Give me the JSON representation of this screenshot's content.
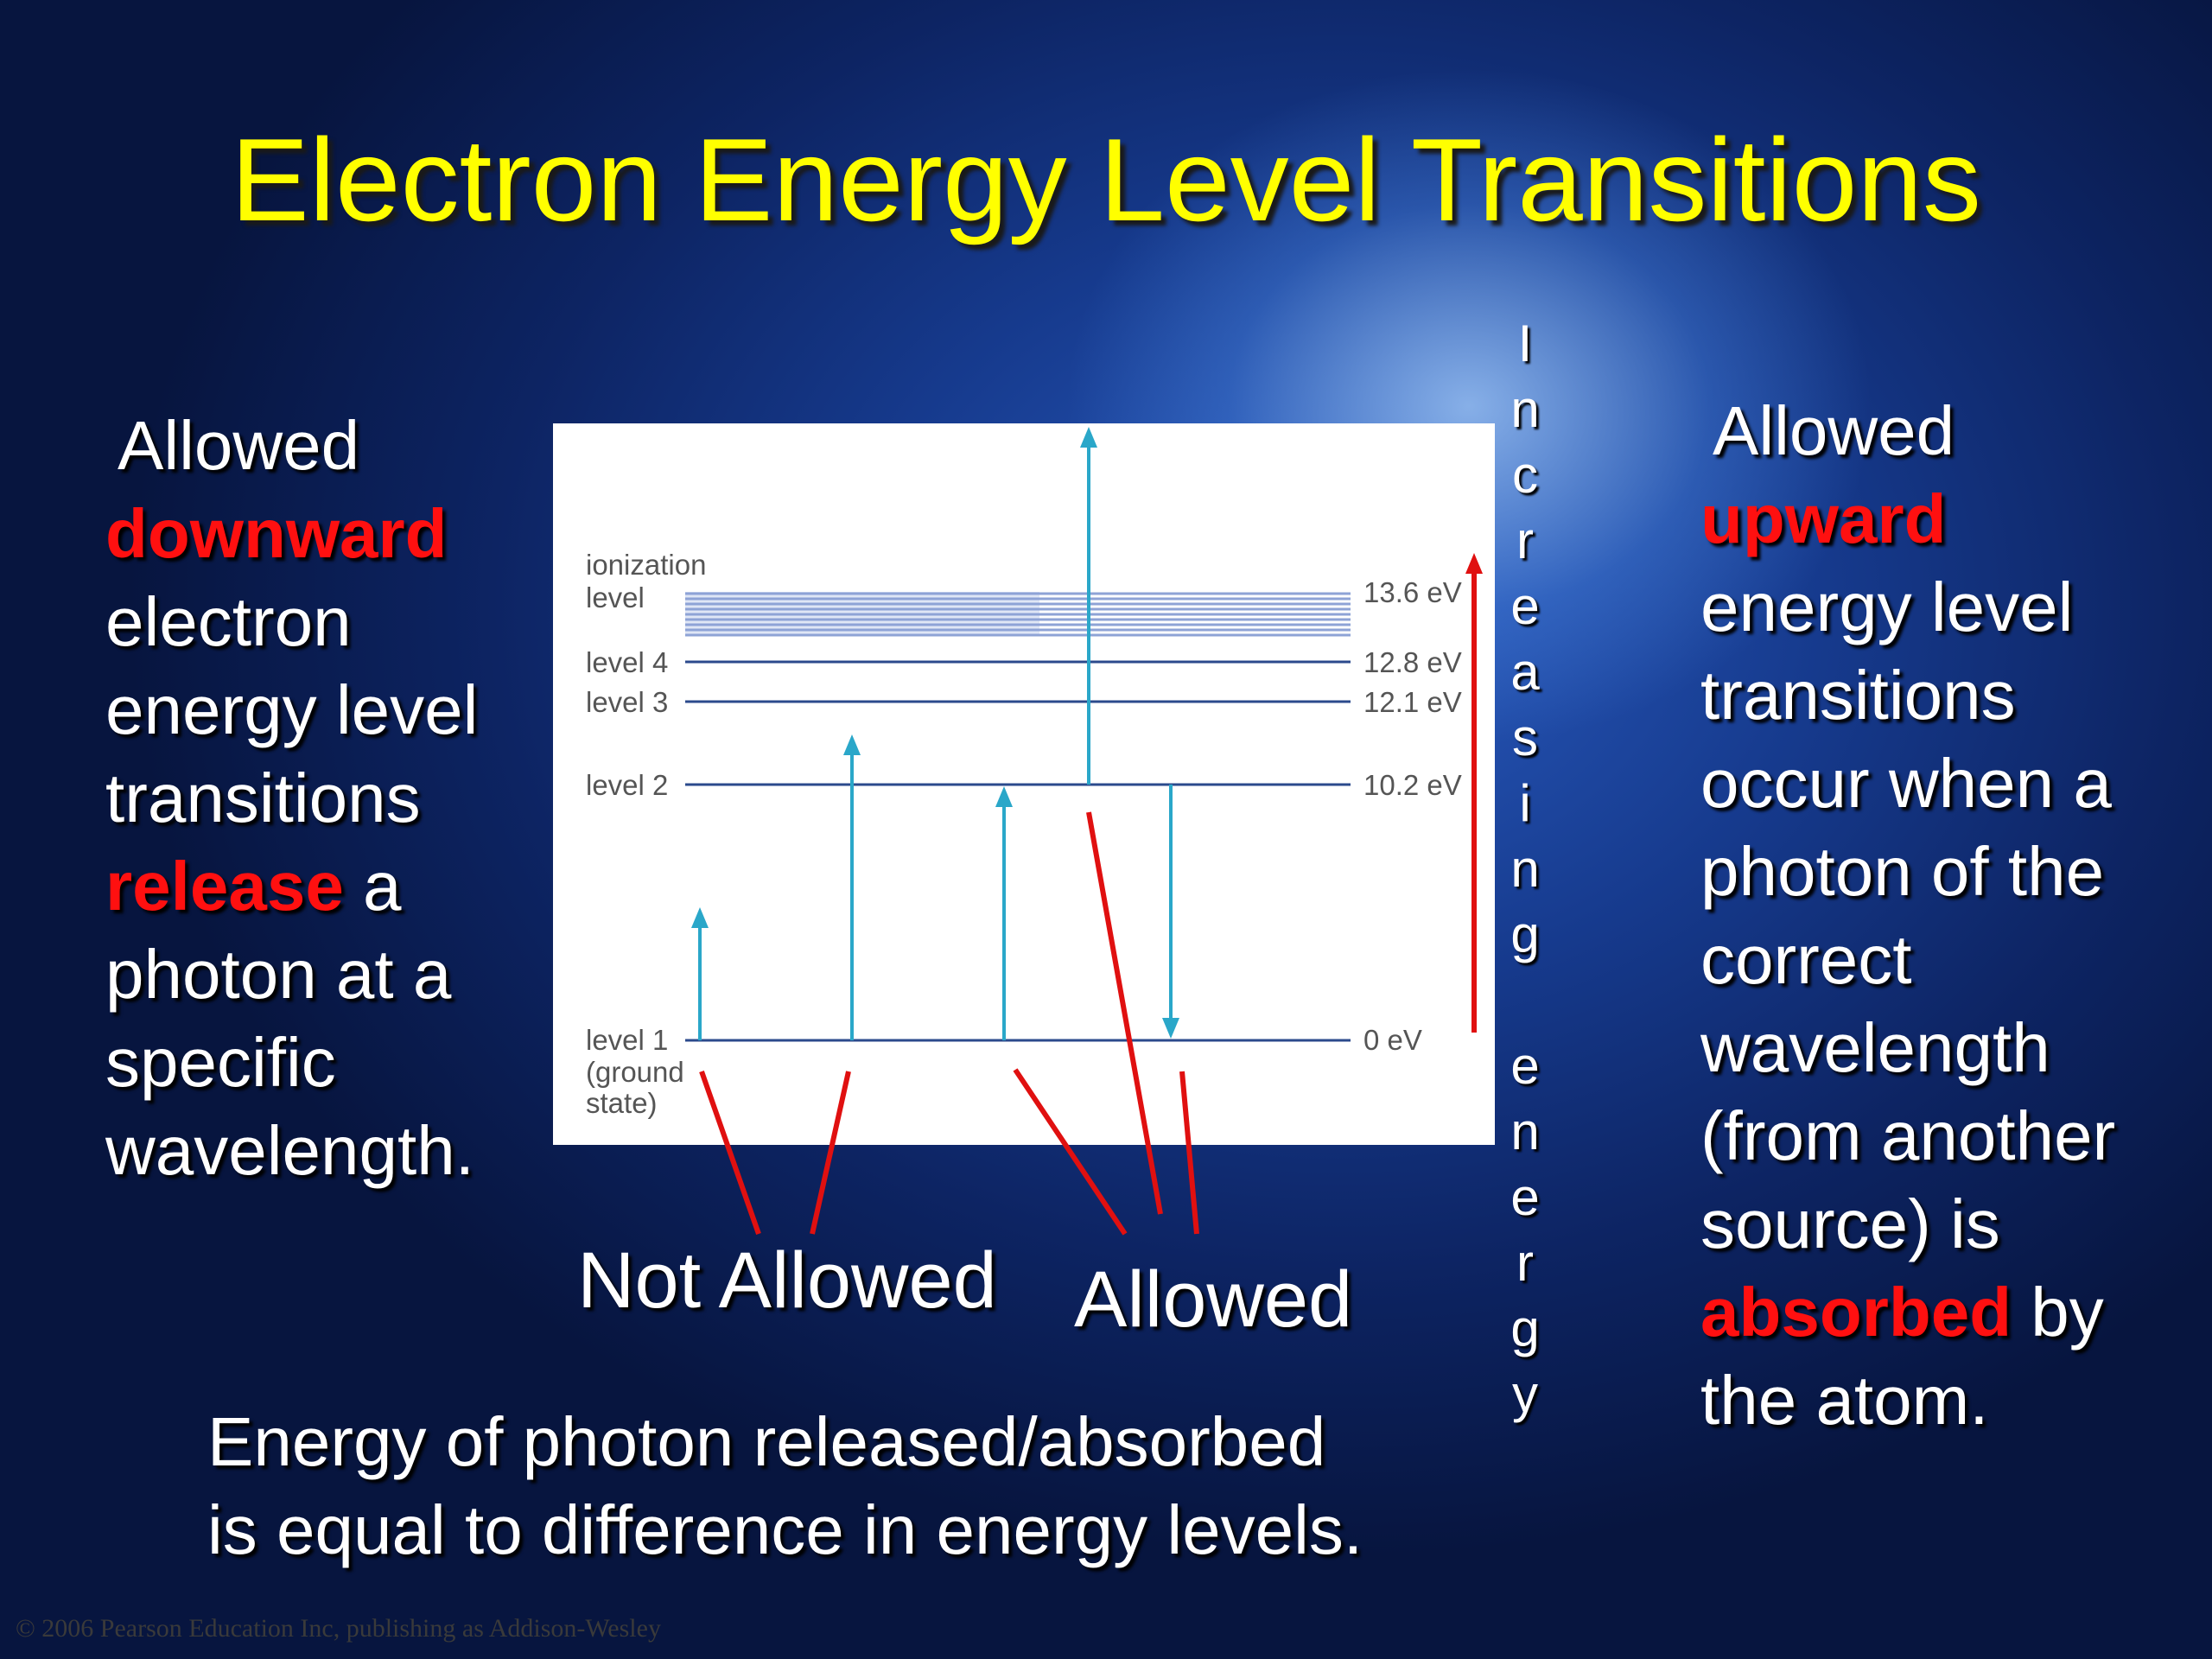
{
  "title": "Electron Energy Level Transitions",
  "left_text": {
    "line1": "Allowed",
    "downward": "downward",
    "line3": "electron",
    "line4": "energy level",
    "line5": "transitions",
    "release": "release",
    "line6_rest": " a",
    "line7": "photon at a",
    "line8": "specific",
    "line9": "wavelength."
  },
  "right_text": {
    "line1": "Allowed",
    "upward": "upward",
    "line3": "energy level",
    "line4": "transitions",
    "line5": "occur when a",
    "line6": "photon of the",
    "line7": "correct",
    "line8": "wavelength",
    "line9": "(from another",
    "line10": "source) is",
    "absorbed": "absorbed",
    "line11_rest": " by",
    "line12": "the atom."
  },
  "vertical_word": [
    "I",
    "n",
    "c",
    "r",
    "e",
    "a",
    "s",
    "i",
    "n",
    "g",
    "",
    "e",
    "n",
    "e",
    "r",
    "g",
    "y"
  ],
  "captions": {
    "not_allowed": "Not Allowed",
    "allowed": "Allowed"
  },
  "bottom_text": {
    "line1": "Energy of photon released/absorbed",
    "line2": "is equal to difference in energy levels."
  },
  "copyright": "© 2006 Pearson Education Inc, publishing as Addison-Wesley",
  "diagram": {
    "levels": [
      {
        "label1": "ionization",
        "label2": "level",
        "energy": "13.6 eV"
      },
      {
        "label1": "level 4",
        "energy": "12.8 eV"
      },
      {
        "label1": "level 3",
        "energy": "12.1 eV"
      },
      {
        "label1": "level 2",
        "energy": "10.2 eV"
      },
      {
        "label1": "level 1",
        "label2": "(ground",
        "label3": "state)",
        "energy": "0 eV"
      }
    ],
    "colors": {
      "level_line": "#2b4a8c",
      "arrow": "#2aa7c9",
      "pointer": "#e01010",
      "ionization_band": "#8ea3d6"
    }
  }
}
